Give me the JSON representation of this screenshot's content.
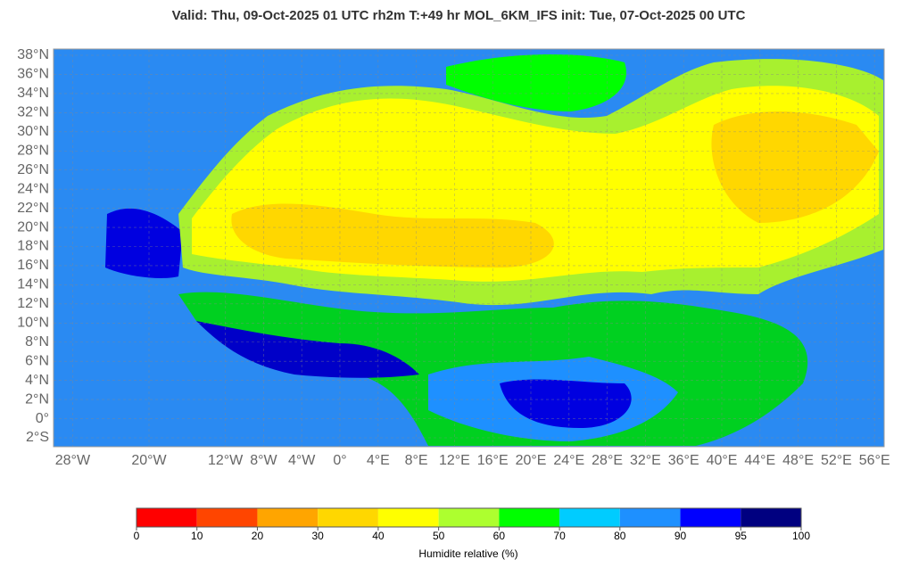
{
  "title": "Valid: Thu, 09-Oct-2025   01 UTC   rh2m   T:+49 hr   MOL_6KM_IFS      init: Tue, 07-Oct-2025   00 UTC",
  "map": {
    "lat_ticks": [
      {
        "value": 38,
        "label": "38°N"
      },
      {
        "value": 36,
        "label": "36°N"
      },
      {
        "value": 34,
        "label": "34°N"
      },
      {
        "value": 32,
        "label": "32°N"
      },
      {
        "value": 30,
        "label": "30°N"
      },
      {
        "value": 28,
        "label": "28°N"
      },
      {
        "value": 26,
        "label": "26°N"
      },
      {
        "value": 24,
        "label": "24°N"
      },
      {
        "value": 22,
        "label": "22°N"
      },
      {
        "value": 20,
        "label": "20°N"
      },
      {
        "value": 18,
        "label": "18°N"
      },
      {
        "value": 16,
        "label": "16°N"
      },
      {
        "value": 14,
        "label": "14°N"
      },
      {
        "value": 12,
        "label": "12°N"
      },
      {
        "value": 10,
        "label": "10°N"
      },
      {
        "value": 8,
        "label": "8°N"
      },
      {
        "value": 6,
        "label": "6°N"
      },
      {
        "value": 4,
        "label": "4°N"
      },
      {
        "value": 2,
        "label": "2°N"
      },
      {
        "value": 0,
        "label": "0°"
      },
      {
        "value": -2,
        "label": "2°S"
      }
    ],
    "lon_ticks": [
      {
        "value": -28,
        "label": "28°W"
      },
      {
        "value": -20,
        "label": "20°W"
      },
      {
        "value": -12,
        "label": "12°W"
      },
      {
        "value": -8,
        "label": "8°W"
      },
      {
        "value": -4,
        "label": "4°W"
      },
      {
        "value": 0,
        "label": "0°"
      },
      {
        "value": 4,
        "label": "4°E"
      },
      {
        "value": 8,
        "label": "8°E"
      },
      {
        "value": 12,
        "label": "12°E"
      },
      {
        "value": 16,
        "label": "16°E"
      },
      {
        "value": 20,
        "label": "20°E"
      },
      {
        "value": 24,
        "label": "24°E"
      },
      {
        "value": 28,
        "label": "28°E"
      },
      {
        "value": 32,
        "label": "32°E"
      },
      {
        "value": 36,
        "label": "36°E"
      },
      {
        "value": 40,
        "label": "40°E"
      },
      {
        "value": 44,
        "label": "44°E"
      },
      {
        "value": 48,
        "label": "48°E"
      },
      {
        "value": 52,
        "label": "52°E"
      },
      {
        "value": 56,
        "label": "56°E"
      }
    ]
  },
  "colorbar": {
    "label": "Humidite relative (%)",
    "bounds": [
      0,
      10,
      20,
      30,
      40,
      50,
      60,
      70,
      80,
      90,
      95,
      100
    ],
    "colors": [
      "#ff0000",
      "#ff4500",
      "#ffa500",
      "#ffd700",
      "#ffff00",
      "#adff2f",
      "#00ff00",
      "#00ccff",
      "#1e90ff",
      "#0000ff",
      "#000080"
    ]
  }
}
